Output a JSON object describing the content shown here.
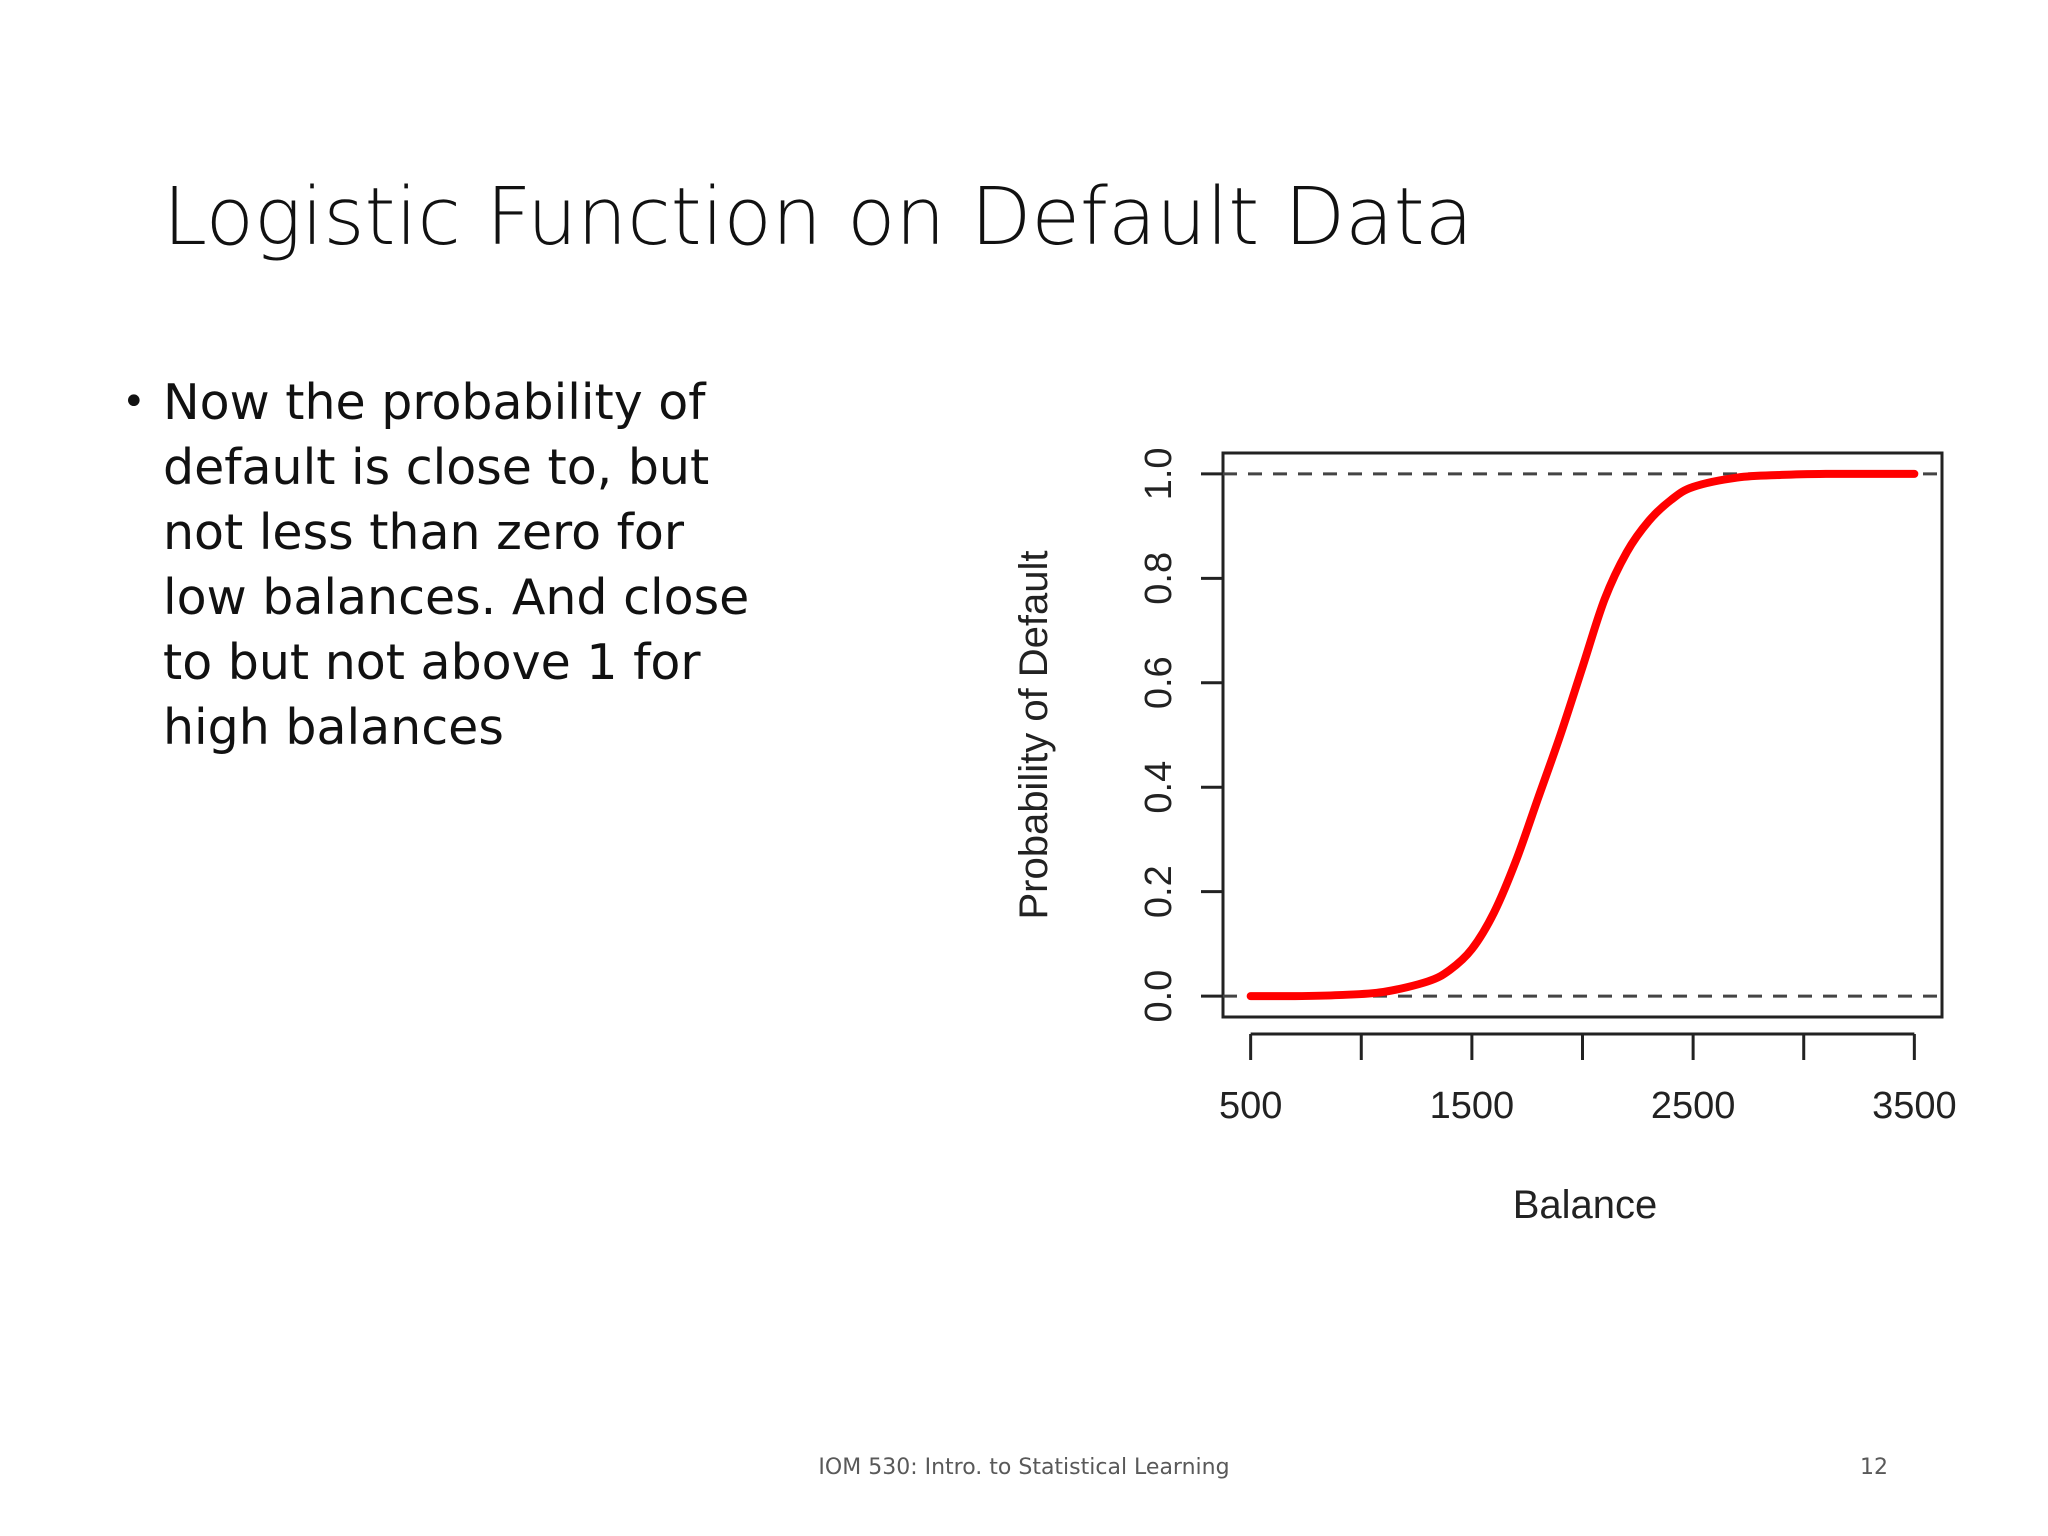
{
  "slide": {
    "title": "Logistic Function on Default Data",
    "bullets": [
      "Now the probability of default is close to, but not less than zero for low balances. And close to but not above 1 for high balances"
    ]
  },
  "footer": {
    "course": "IOM 530: Intro. to Statistical Learning",
    "page_number": "12"
  },
  "chart_data": {
    "type": "line",
    "title": "",
    "xlabel": "Balance",
    "ylabel": "Probability of Default",
    "xlim": [
      375,
      3625
    ],
    "ylim": [
      -0.04,
      1.04
    ],
    "x_ticks": [
      500,
      1000,
      1500,
      2000,
      2500,
      3000,
      3500
    ],
    "x_tick_labels": [
      "500",
      "",
      "1500",
      "",
      "2500",
      "",
      "3500"
    ],
    "y_ticks": [
      0.0,
      0.2,
      0.4,
      0.6,
      0.8,
      1.0
    ],
    "y_tick_labels": [
      "0.0",
      "0.2",
      "0.4",
      "0.6",
      "0.8",
      "1.0"
    ],
    "grid": false,
    "reference_lines": [
      0.0,
      1.0
    ],
    "series": [
      {
        "color": "#ff0000",
        "x": [
          500,
          700,
          900,
          1100,
          1300,
          1400,
          1500,
          1600,
          1700,
          1800,
          1900,
          2000,
          2100,
          2200,
          2300,
          2400,
          2500,
          2700,
          2900,
          3100,
          3300,
          3500
        ],
        "y": [
          0.0,
          0.0,
          0.002,
          0.008,
          0.028,
          0.05,
          0.09,
          0.16,
          0.26,
          0.38,
          0.5,
          0.63,
          0.76,
          0.85,
          0.91,
          0.95,
          0.975,
          0.993,
          0.998,
          1.0,
          1.0,
          1.0
        ]
      }
    ],
    "colors": {
      "curve": "#ff0000",
      "axes": "#222222",
      "dashed": "#444444"
    }
  }
}
